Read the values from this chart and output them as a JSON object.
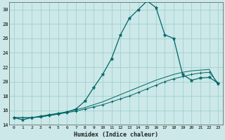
{
  "xlabel": "Humidex (Indice chaleur)",
  "bg_color": "#cce8e8",
  "grid_color": "#99cccc",
  "line_color": "#006666",
  "xlim": [
    -0.5,
    23.5
  ],
  "ylim": [
    14,
    31
  ],
  "yticks": [
    14,
    16,
    18,
    20,
    22,
    24,
    26,
    28,
    30
  ],
  "xticks": [
    0,
    1,
    2,
    3,
    4,
    5,
    6,
    7,
    8,
    9,
    10,
    11,
    12,
    13,
    14,
    15,
    16,
    17,
    18,
    19,
    20,
    21,
    22,
    23
  ],
  "series1_x": [
    0,
    1,
    2,
    3,
    4,
    5,
    6,
    7,
    8,
    9,
    10,
    11,
    12,
    13,
    14,
    15,
    16,
    17,
    18,
    19,
    20,
    21,
    22,
    23
  ],
  "series1_y": [
    15.0,
    14.7,
    15.0,
    15.2,
    15.4,
    15.6,
    15.8,
    16.2,
    17.3,
    19.2,
    21.0,
    23.2,
    26.5,
    28.8,
    30.0,
    31.2,
    30.3,
    26.5,
    26.0,
    21.0,
    20.2,
    20.5,
    20.6,
    19.8
  ],
  "series2_x": [
    0,
    1,
    2,
    3,
    4,
    5,
    6,
    7,
    8,
    9,
    10,
    11,
    12,
    13,
    14,
    15,
    16,
    17,
    18,
    19,
    20,
    21,
    22,
    23
  ],
  "series2_y": [
    15.0,
    15.0,
    15.0,
    15.1,
    15.3,
    15.5,
    15.7,
    15.9,
    16.2,
    16.5,
    16.8,
    17.2,
    17.6,
    18.0,
    18.5,
    19.0,
    19.5,
    20.0,
    20.4,
    20.7,
    21.0,
    21.2,
    21.3,
    19.8
  ],
  "series3_x": [
    0,
    1,
    2,
    3,
    4,
    5,
    6,
    7,
    8,
    9,
    10,
    11,
    12,
    13,
    14,
    15,
    16,
    17,
    18,
    19,
    20,
    21,
    22,
    23
  ],
  "series3_y": [
    15.0,
    15.0,
    15.0,
    15.1,
    15.3,
    15.5,
    15.8,
    16.1,
    16.4,
    16.8,
    17.2,
    17.7,
    18.2,
    18.7,
    19.2,
    19.7,
    20.2,
    20.6,
    21.0,
    21.3,
    21.5,
    21.6,
    21.7,
    19.5
  ]
}
